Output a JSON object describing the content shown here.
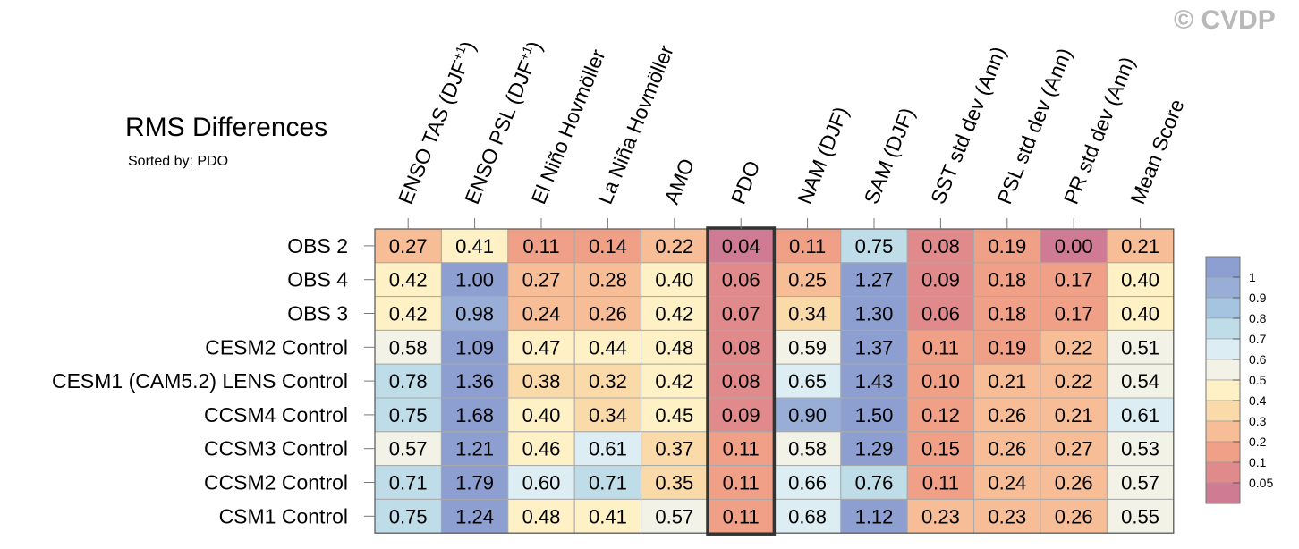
{
  "chart_data": {
    "type": "heatmap",
    "title": "RMS Differences",
    "subtitle": "Sorted by: PDO",
    "watermark": "© CVDP",
    "highlight_column": "PDO",
    "columns": [
      "ENSO TAS (DJF+1)",
      "ENSO PSL (DJF+1)",
      "El Niño Hovmöller",
      "La Niña Hovmöller",
      "AMO",
      "PDO",
      "NAM (DJF)",
      "SAM (DJF)",
      "SST std dev (Ann)",
      "PSL std dev (Ann)",
      "PR std dev (Ann)",
      "Mean Score"
    ],
    "rows": [
      "OBS 2",
      "OBS 4",
      "OBS 3",
      "CESM2 Control",
      "CESM1 (CAM5.2) LENS Control",
      "CCSM4 Control",
      "CCSM3 Control",
      "CCSM2 Control",
      "CSM1 Control"
    ],
    "values": [
      [
        0.27,
        0.41,
        0.11,
        0.14,
        0.22,
        0.04,
        0.11,
        0.75,
        0.08,
        0.19,
        0.0,
        0.21
      ],
      [
        0.42,
        1.0,
        0.27,
        0.28,
        0.4,
        0.06,
        0.25,
        1.27,
        0.09,
        0.18,
        0.17,
        0.4
      ],
      [
        0.42,
        0.98,
        0.24,
        0.26,
        0.42,
        0.07,
        0.34,
        1.3,
        0.06,
        0.18,
        0.17,
        0.4
      ],
      [
        0.58,
        1.09,
        0.47,
        0.44,
        0.48,
        0.08,
        0.59,
        1.37,
        0.11,
        0.19,
        0.22,
        0.51
      ],
      [
        0.78,
        1.36,
        0.38,
        0.32,
        0.42,
        0.08,
        0.65,
        1.43,
        0.1,
        0.21,
        0.22,
        0.54
      ],
      [
        0.75,
        1.68,
        0.4,
        0.34,
        0.45,
        0.09,
        0.9,
        1.5,
        0.12,
        0.26,
        0.21,
        0.61
      ],
      [
        0.57,
        1.21,
        0.46,
        0.61,
        0.37,
        0.11,
        0.58,
        1.29,
        0.15,
        0.26,
        0.27,
        0.53
      ],
      [
        0.71,
        1.79,
        0.6,
        0.71,
        0.35,
        0.11,
        0.66,
        0.76,
        0.11,
        0.24,
        0.26,
        0.57
      ],
      [
        0.75,
        1.24,
        0.48,
        0.41,
        0.57,
        0.11,
        0.68,
        1.12,
        0.23,
        0.23,
        0.26,
        0.55
      ]
    ],
    "colorbar": {
      "labels": [
        "1",
        "0.9",
        "0.8",
        "0.7",
        "0.6",
        "0.5",
        "0.4",
        "0.3",
        "0.2",
        "0.1",
        "0.05"
      ],
      "thresholds": [
        0.05,
        0.1,
        0.2,
        0.3,
        0.4,
        0.5,
        0.6,
        0.7,
        0.8,
        0.9,
        1
      ],
      "colors": [
        "#cf7b93",
        "#e08a8c",
        "#f0a087",
        "#f7bd96",
        "#fbdaa9",
        "#fdf1c5",
        "#f2f2e6",
        "#dceef3",
        "#bfdce9",
        "#a5c4df",
        "#98aed6",
        "#8d9fd0"
      ]
    }
  }
}
